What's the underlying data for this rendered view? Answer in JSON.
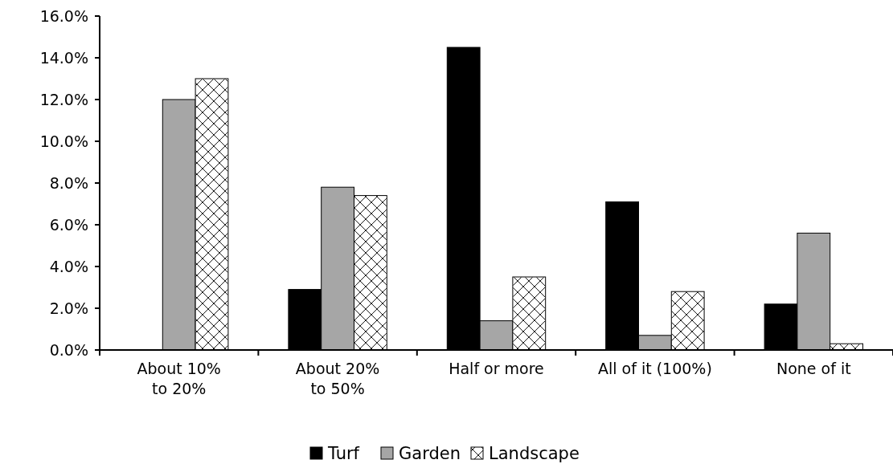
{
  "chart_data": {
    "type": "bar",
    "categories": [
      "About 10%\nto 20%",
      "About 20%\nto 50%",
      "Half or more",
      "All of it (100%)",
      "None of it"
    ],
    "series": [
      {
        "name": "Turf",
        "color": "#000000",
        "values": [
          0,
          2.9,
          14.5,
          7.1,
          2.2
        ]
      },
      {
        "name": "Garden",
        "color": "#a6a6a6",
        "values": [
          12.0,
          7.8,
          1.4,
          0.7,
          5.6
        ]
      },
      {
        "name": "Landscape",
        "color": "#ffffff",
        "values": [
          13.0,
          7.4,
          3.5,
          2.8,
          0.3
        ]
      }
    ],
    "ylim": [
      0,
      16
    ],
    "yticks": [
      {
        "value": 0,
        "label": "0.0%"
      },
      {
        "value": 2,
        "label": "2.0%"
      },
      {
        "value": 4,
        "label": "4.0%"
      },
      {
        "value": 6,
        "label": "6.0%"
      },
      {
        "value": 8,
        "label": "8.0%"
      },
      {
        "value": 10,
        "label": "10.0%"
      },
      {
        "value": 12,
        "label": "12.0%"
      },
      {
        "value": 14,
        "label": "14.0%"
      },
      {
        "value": 16,
        "label": "16.0%"
      }
    ],
    "grid": false,
    "legend": "bottom"
  }
}
